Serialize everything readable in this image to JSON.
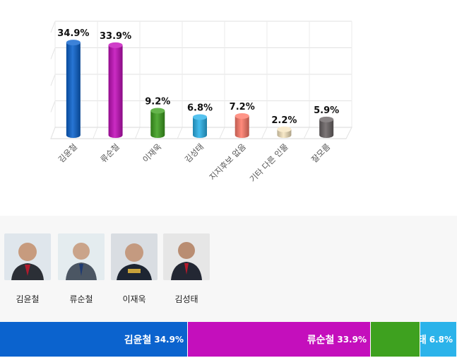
{
  "chart_data": {
    "type": "bar",
    "style": "3d-cylinder",
    "categories": [
      "김윤철",
      "류순철",
      "이재욱",
      "김성태",
      "지지후보 없음",
      "기타 다른 인물",
      "잘모름"
    ],
    "values": [
      34.9,
      33.9,
      9.2,
      6.8,
      7.2,
      2.2,
      5.9
    ],
    "data_labels": [
      "34.9%",
      "33.9%",
      "9.2%",
      "6.8%",
      "7.2%",
      "2.2%",
      "5.9%"
    ],
    "colors": [
      "#0b63ce",
      "#c40fbc",
      "#3ea11f",
      "#2bb3ea",
      "#ff7b6a",
      "#f7e6c1",
      "#6b6566"
    ],
    "ylim": [
      0,
      40
    ],
    "grid": true,
    "title": "",
    "xlabel": "",
    "ylabel": ""
  },
  "candidates": [
    {
      "name": "김윤철",
      "photo_icon": "candidate-photo-icon"
    },
    {
      "name": "류순철",
      "photo_icon": "candidate-photo-icon"
    },
    {
      "name": "이재욱",
      "photo_icon": "candidate-photo-icon"
    },
    {
      "name": "김성태",
      "photo_icon": "candidate-photo-icon"
    }
  ],
  "summary_bar": [
    {
      "name": "김윤철",
      "value": 34.9,
      "pct_label": "34.9%",
      "color": "#0b63ce"
    },
    {
      "name": "류순철",
      "value": 33.9,
      "pct_label": "33.9%",
      "color": "#c40fbc"
    },
    {
      "name": "김성태",
      "value": 6.8,
      "pct_label": "6.8%",
      "color": "#2bb3ea"
    }
  ],
  "summary_unlabeled": {
    "value": 9.2,
    "color": "#3ea11f"
  }
}
